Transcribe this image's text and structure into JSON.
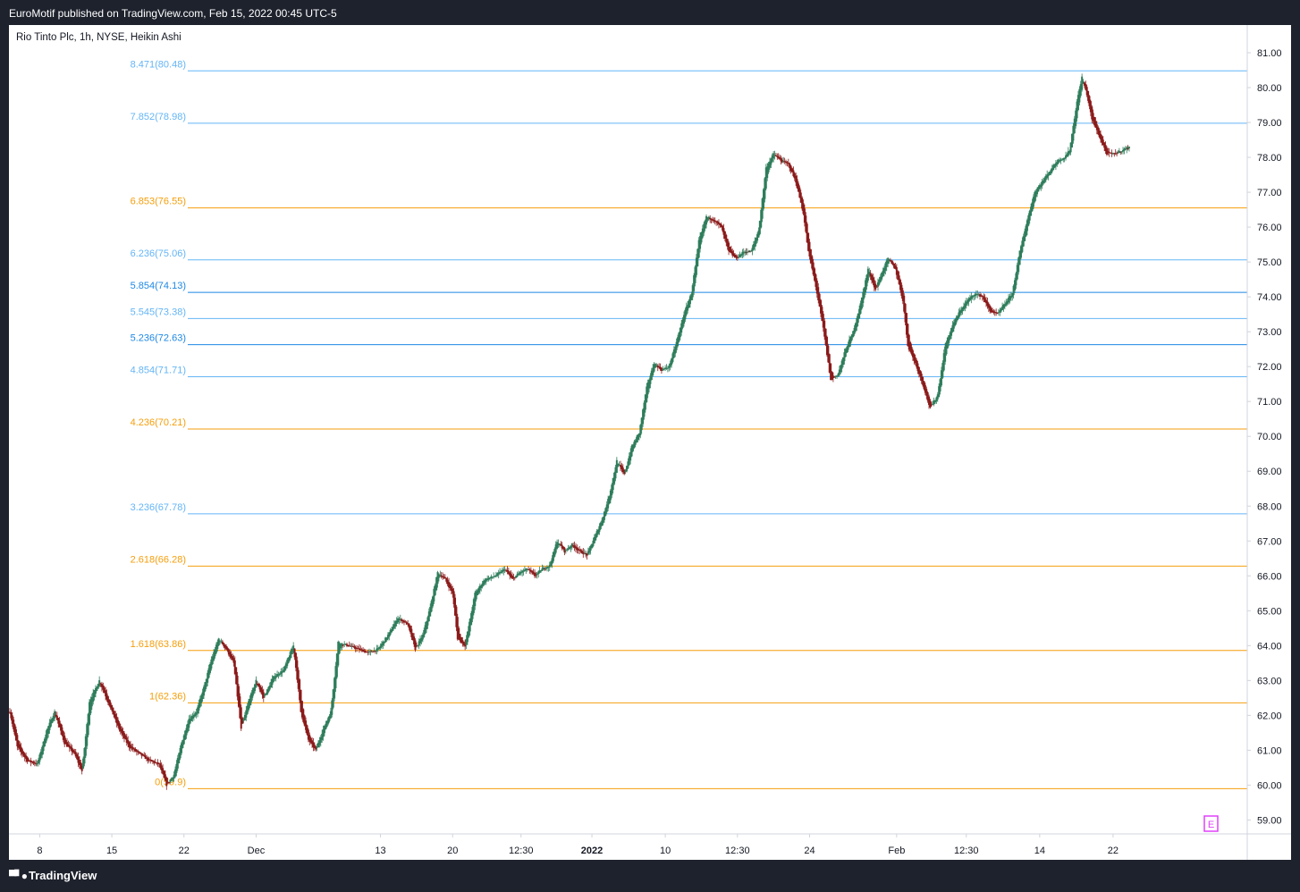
{
  "header": {
    "publisher_line": "EuroMotif published on TradingView.com, Feb 15, 2022 00:45 UTC-5"
  },
  "footer": {
    "logo_text": "TradingView",
    "logo_icon": "tradingview-logo-icon"
  },
  "colors": {
    "background": "#ffffff",
    "frame": "#1e222d",
    "up_candle": "#2e7d5b",
    "down_candle": "#8b1a1a",
    "fib_blue": "#64b5f6",
    "fib_orange": "#f59e0b",
    "axis_text": "#131722",
    "marker": "#e040fb"
  },
  "chart_data": {
    "type": "candlestick",
    "title": "Rio Tinto Plc, 1h, NYSE, Heikin Ashi",
    "symbol": "Rio Tinto Plc",
    "interval": "1h",
    "exchange": "NYSE",
    "style": "Heikin Ashi",
    "ylim": [
      58.5,
      81.3
    ],
    "y_ticks": [
      "81.00",
      "80.00",
      "79.00",
      "78.00",
      "77.00",
      "76.00",
      "75.00",
      "74.00",
      "73.00",
      "72.00",
      "71.00",
      "70.00",
      "69.00",
      "68.00",
      "67.00",
      "66.00",
      "65.00",
      "64.00",
      "63.00",
      "62.00",
      "61.00",
      "60.00",
      "59.00"
    ],
    "x_ticks": [
      {
        "label": "8",
        "i": 24,
        "bold": false
      },
      {
        "label": "15",
        "i": 82,
        "bold": false
      },
      {
        "label": "22",
        "i": 140,
        "bold": false
      },
      {
        "label": "Dec",
        "i": 198,
        "bold": false
      },
      {
        "label": "13",
        "i": 298,
        "bold": false
      },
      {
        "label": "20",
        "i": 356,
        "bold": false
      },
      {
        "label": "12:30",
        "i": 411,
        "bold": false
      },
      {
        "label": "2022",
        "i": 468,
        "bold": true
      },
      {
        "label": "10",
        "i": 527,
        "bold": false
      },
      {
        "label": "12:30",
        "i": 585,
        "bold": false
      },
      {
        "label": "24",
        "i": 643,
        "bold": false
      },
      {
        "label": "Feb",
        "i": 713,
        "bold": false
      },
      {
        "label": "12:30",
        "i": 769,
        "bold": false
      },
      {
        "label": "14",
        "i": 828,
        "bold": false
      },
      {
        "label": "22",
        "i": 887,
        "bold": false
      }
    ],
    "fib_levels": [
      {
        "label": "8.471(80.48)",
        "value": 80.48,
        "color": "#64b5f6"
      },
      {
        "label": "7.852(78.98)",
        "value": 78.98,
        "color": "#64b5f6"
      },
      {
        "label": "6.853(76.55)",
        "value": 76.55,
        "color": "#f59e0b"
      },
      {
        "label": "6.236(75.06)",
        "value": 75.06,
        "color": "#64b5f6"
      },
      {
        "label": "5.854(74.13)",
        "value": 74.13,
        "color": "#1e88e5"
      },
      {
        "label": "5.545(73.38)",
        "value": 73.38,
        "color": "#64b5f6"
      },
      {
        "label": "5.236(72.63)",
        "value": 72.63,
        "color": "#1e88e5"
      },
      {
        "label": "4.854(71.71)",
        "value": 71.71,
        "color": "#64b5f6"
      },
      {
        "label": "4.236(70.21)",
        "value": 70.21,
        "color": "#f59e0b"
      },
      {
        "label": "3.236(67.78)",
        "value": 67.78,
        "color": "#64b5f6"
      },
      {
        "label": "2.618(66.28)",
        "value": 66.28,
        "color": "#f59e0b"
      },
      {
        "label": "1.618(63.86)",
        "value": 63.86,
        "color": "#f59e0b"
      },
      {
        "label": "1(62.36)",
        "value": 62.36,
        "color": "#f59e0b"
      },
      {
        "label": "0(59.9)",
        "value": 59.9,
        "color": "#f59e0b"
      }
    ],
    "price_path": [
      [
        0,
        62.1
      ],
      [
        6,
        61.1
      ],
      [
        14,
        60.7
      ],
      [
        22,
        60.6
      ],
      [
        30,
        61.6
      ],
      [
        36,
        62.1
      ],
      [
        44,
        61.2
      ],
      [
        52,
        60.9
      ],
      [
        58,
        60.4
      ],
      [
        64,
        62.4
      ],
      [
        72,
        63.0
      ],
      [
        80,
        62.3
      ],
      [
        88,
        61.6
      ],
      [
        96,
        61.1
      ],
      [
        104,
        60.9
      ],
      [
        112,
        60.7
      ],
      [
        120,
        60.6
      ],
      [
        126,
        60.0
      ],
      [
        132,
        60.3
      ],
      [
        138,
        61.2
      ],
      [
        144,
        61.9
      ],
      [
        150,
        62.1
      ],
      [
        156,
        62.8
      ],
      [
        162,
        63.6
      ],
      [
        168,
        64.2
      ],
      [
        174,
        63.9
      ],
      [
        180,
        63.5
      ],
      [
        186,
        61.6
      ],
      [
        192,
        62.4
      ],
      [
        198,
        63.0
      ],
      [
        204,
        62.5
      ],
      [
        212,
        63.1
      ],
      [
        220,
        63.3
      ],
      [
        228,
        64.0
      ],
      [
        234,
        62.1
      ],
      [
        240,
        61.3
      ],
      [
        246,
        61.0
      ],
      [
        252,
        61.6
      ],
      [
        258,
        62.1
      ],
      [
        264,
        64.1
      ],
      [
        272,
        64.0
      ],
      [
        280,
        63.9
      ],
      [
        288,
        63.8
      ],
      [
        296,
        63.9
      ],
      [
        304,
        64.3
      ],
      [
        312,
        64.8
      ],
      [
        320,
        64.6
      ],
      [
        326,
        63.9
      ],
      [
        332,
        64.3
      ],
      [
        338,
        65.1
      ],
      [
        344,
        66.1
      ],
      [
        350,
        65.9
      ],
      [
        356,
        65.5
      ],
      [
        360,
        64.2
      ],
      [
        366,
        64.0
      ],
      [
        374,
        65.5
      ],
      [
        382,
        65.9
      ],
      [
        390,
        66.0
      ],
      [
        398,
        66.2
      ],
      [
        404,
        65.9
      ],
      [
        410,
        66.1
      ],
      [
        416,
        66.2
      ],
      [
        422,
        66.0
      ],
      [
        428,
        66.2
      ],
      [
        434,
        66.3
      ],
      [
        440,
        67.0
      ],
      [
        446,
        66.7
      ],
      [
        452,
        66.9
      ],
      [
        458,
        66.7
      ],
      [
        464,
        66.6
      ],
      [
        470,
        67.1
      ],
      [
        476,
        67.6
      ],
      [
        482,
        68.3
      ],
      [
        488,
        69.3
      ],
      [
        494,
        68.9
      ],
      [
        500,
        69.7
      ],
      [
        506,
        70.1
      ],
      [
        512,
        71.4
      ],
      [
        518,
        72.1
      ],
      [
        524,
        71.9
      ],
      [
        530,
        72.0
      ],
      [
        536,
        72.7
      ],
      [
        542,
        73.5
      ],
      [
        548,
        74.1
      ],
      [
        554,
        75.6
      ],
      [
        560,
        76.3
      ],
      [
        566,
        76.2
      ],
      [
        572,
        76.0
      ],
      [
        578,
        75.3
      ],
      [
        584,
        75.1
      ],
      [
        590,
        75.3
      ],
      [
        596,
        75.3
      ],
      [
        602,
        75.9
      ],
      [
        608,
        77.7
      ],
      [
        614,
        78.1
      ],
      [
        620,
        77.9
      ],
      [
        626,
        77.8
      ],
      [
        632,
        77.3
      ],
      [
        638,
        76.4
      ],
      [
        642,
        75.3
      ],
      [
        648,
        74.3
      ],
      [
        654,
        73.1
      ],
      [
        660,
        71.6
      ],
      [
        666,
        71.8
      ],
      [
        672,
        72.5
      ],
      [
        678,
        73.0
      ],
      [
        684,
        73.8
      ],
      [
        690,
        74.8
      ],
      [
        696,
        74.2
      ],
      [
        700,
        74.6
      ],
      [
        706,
        75.1
      ],
      [
        712,
        74.8
      ],
      [
        718,
        73.9
      ],
      [
        722,
        72.6
      ],
      [
        728,
        72.1
      ],
      [
        734,
        71.5
      ],
      [
        740,
        70.8
      ],
      [
        746,
        71.2
      ],
      [
        752,
        72.6
      ],
      [
        758,
        73.2
      ],
      [
        764,
        73.6
      ],
      [
        770,
        73.9
      ],
      [
        776,
        74.1
      ],
      [
        782,
        74.0
      ],
      [
        788,
        73.6
      ],
      [
        794,
        73.5
      ],
      [
        800,
        73.8
      ],
      [
        806,
        74.1
      ],
      [
        812,
        75.3
      ],
      [
        818,
        76.2
      ],
      [
        824,
        77.0
      ],
      [
        830,
        77.3
      ],
      [
        836,
        77.6
      ],
      [
        842,
        77.9
      ],
      [
        848,
        78.0
      ],
      [
        852,
        78.2
      ],
      [
        858,
        79.6
      ],
      [
        862,
        80.3
      ],
      [
        866,
        79.8
      ],
      [
        870,
        79.1
      ],
      [
        876,
        78.6
      ],
      [
        882,
        78.1
      ],
      [
        888,
        78.1
      ],
      [
        894,
        78.2
      ],
      [
        900,
        78.3
      ]
    ],
    "n_bars": 901
  },
  "marker": {
    "label": "E"
  }
}
